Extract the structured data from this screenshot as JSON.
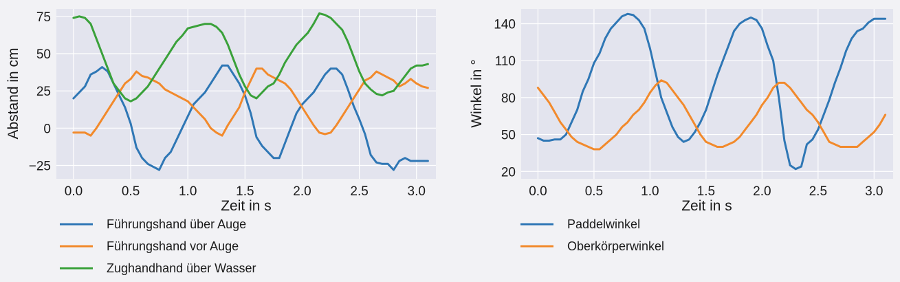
{
  "chart_data": [
    {
      "type": "line",
      "title": "",
      "xlabel": "Zeit in s",
      "ylabel": "Abstand in cm",
      "xlim": [
        -0.15,
        3.17
      ],
      "ylim": [
        -34,
        80
      ],
      "xticks": [
        0.0,
        0.5,
        1.0,
        1.5,
        2.0,
        2.5,
        3.0
      ],
      "xtick_labels": [
        "0.0",
        "0.5",
        "1.0",
        "1.5",
        "2.0",
        "2.5",
        "3.0"
      ],
      "yticks": [
        -25,
        0,
        25,
        50,
        75
      ],
      "ytick_labels": [
        "−25",
        "0",
        "25",
        "50",
        "75"
      ],
      "grid": true,
      "legend_position": "below",
      "series": [
        {
          "name": "Führungshand über Auge",
          "color": "#2f77b5",
          "x": [
            0.0,
            0.05,
            0.1,
            0.15,
            0.2,
            0.25,
            0.3,
            0.35,
            0.4,
            0.45,
            0.5,
            0.55,
            0.6,
            0.65,
            0.7,
            0.75,
            0.8,
            0.85,
            0.9,
            0.95,
            1.0,
            1.05,
            1.1,
            1.15,
            1.2,
            1.25,
            1.3,
            1.35,
            1.4,
            1.45,
            1.5,
            1.55,
            1.6,
            1.65,
            1.7,
            1.75,
            1.8,
            1.85,
            1.9,
            1.95,
            2.0,
            2.05,
            2.1,
            2.15,
            2.2,
            2.25,
            2.3,
            2.35,
            2.4,
            2.45,
            2.5,
            2.55,
            2.6,
            2.65,
            2.7,
            2.75,
            2.8,
            2.85,
            2.9,
            2.95,
            3.0,
            3.05,
            3.1
          ],
          "values": [
            20,
            24,
            28,
            36,
            38,
            41,
            38,
            30,
            22,
            14,
            3,
            -13,
            -20,
            -24,
            -26,
            -28,
            -20,
            -16,
            -8,
            0,
            8,
            16,
            20,
            24,
            30,
            36,
            42,
            42,
            36,
            30,
            22,
            10,
            -6,
            -12,
            -16,
            -20,
            -20,
            -10,
            0,
            10,
            16,
            20,
            24,
            30,
            36,
            40,
            40,
            36,
            26,
            15,
            6,
            -4,
            -18,
            -23,
            -24,
            -24,
            -28,
            -22,
            -20,
            -22,
            -22,
            -22,
            -22
          ]
        },
        {
          "name": "Führungshand vor Auge",
          "color": "#f28a2c",
          "x": [
            0.0,
            0.05,
            0.1,
            0.15,
            0.2,
            0.25,
            0.3,
            0.35,
            0.4,
            0.45,
            0.5,
            0.55,
            0.6,
            0.65,
            0.7,
            0.75,
            0.8,
            0.85,
            0.9,
            0.95,
            1.0,
            1.05,
            1.1,
            1.15,
            1.2,
            1.25,
            1.3,
            1.35,
            1.4,
            1.45,
            1.5,
            1.55,
            1.6,
            1.65,
            1.7,
            1.75,
            1.8,
            1.85,
            1.9,
            1.95,
            2.0,
            2.05,
            2.1,
            2.15,
            2.2,
            2.25,
            2.3,
            2.35,
            2.4,
            2.45,
            2.5,
            2.55,
            2.6,
            2.65,
            2.7,
            2.75,
            2.8,
            2.85,
            2.9,
            2.95,
            3.0,
            3.05,
            3.1
          ],
          "values": [
            -3,
            -3,
            -3,
            -5,
            0,
            6,
            12,
            18,
            24,
            30,
            33,
            38,
            35,
            34,
            32,
            30,
            26,
            24,
            22,
            20,
            18,
            14,
            10,
            6,
            0,
            -3,
            -5,
            2,
            8,
            14,
            24,
            32,
            40,
            40,
            36,
            34,
            32,
            30,
            26,
            20,
            14,
            8,
            2,
            -3,
            -4,
            -3,
            2,
            8,
            14,
            20,
            26,
            32,
            34,
            38,
            36,
            34,
            32,
            28,
            30,
            33,
            30,
            28,
            27
          ]
        },
        {
          "name": "Zughandhand über Wasser",
          "color": "#3aa13a",
          "x": [
            0.0,
            0.05,
            0.1,
            0.15,
            0.2,
            0.25,
            0.3,
            0.35,
            0.4,
            0.45,
            0.5,
            0.55,
            0.6,
            0.65,
            0.7,
            0.75,
            0.8,
            0.85,
            0.9,
            0.95,
            1.0,
            1.05,
            1.1,
            1.15,
            1.2,
            1.25,
            1.3,
            1.35,
            1.4,
            1.45,
            1.5,
            1.55,
            1.6,
            1.65,
            1.7,
            1.75,
            1.8,
            1.85,
            1.9,
            1.95,
            2.0,
            2.05,
            2.1,
            2.15,
            2.2,
            2.25,
            2.3,
            2.35,
            2.4,
            2.45,
            2.5,
            2.55,
            2.6,
            2.65,
            2.7,
            2.75,
            2.8,
            2.85,
            2.9,
            2.95,
            3.0,
            3.05,
            3.1
          ],
          "values": [
            74,
            75,
            74,
            70,
            60,
            50,
            40,
            30,
            25,
            20,
            18,
            20,
            24,
            28,
            34,
            40,
            46,
            52,
            58,
            62,
            67,
            68,
            69,
            70,
            70,
            68,
            64,
            56,
            46,
            36,
            28,
            22,
            20,
            24,
            28,
            30,
            36,
            44,
            50,
            56,
            60,
            64,
            70,
            77,
            76,
            74,
            70,
            66,
            58,
            48,
            38,
            30,
            26,
            23,
            22,
            24,
            25,
            30,
            35,
            40,
            42,
            42,
            43
          ]
        }
      ]
    },
    {
      "type": "line",
      "title": "",
      "xlabel": "Zeit in s",
      "ylabel": "Winkel in °",
      "xlim": [
        -0.15,
        3.17
      ],
      "ylim": [
        14,
        152
      ],
      "xticks": [
        0.0,
        0.5,
        1.0,
        1.5,
        2.0,
        2.5,
        3.0
      ],
      "xtick_labels": [
        "0.0",
        "0.5",
        "1.0",
        "1.5",
        "2.0",
        "2.5",
        "3.0"
      ],
      "yticks": [
        20,
        50,
        80,
        110,
        140
      ],
      "ytick_labels": [
        "20",
        "50",
        "80",
        "110",
        "140"
      ],
      "grid": true,
      "legend_position": "below",
      "series": [
        {
          "name": "Paddelwinkel",
          "color": "#2f77b5",
          "x": [
            0.0,
            0.05,
            0.1,
            0.15,
            0.2,
            0.25,
            0.3,
            0.35,
            0.4,
            0.45,
            0.5,
            0.55,
            0.6,
            0.65,
            0.7,
            0.75,
            0.8,
            0.85,
            0.9,
            0.95,
            1.0,
            1.05,
            1.1,
            1.15,
            1.2,
            1.25,
            1.3,
            1.35,
            1.4,
            1.45,
            1.5,
            1.55,
            1.6,
            1.65,
            1.7,
            1.75,
            1.8,
            1.85,
            1.9,
            1.95,
            2.0,
            2.05,
            2.1,
            2.15,
            2.2,
            2.25,
            2.3,
            2.35,
            2.4,
            2.45,
            2.5,
            2.55,
            2.6,
            2.65,
            2.7,
            2.75,
            2.8,
            2.85,
            2.9,
            2.95,
            3.0,
            3.05,
            3.1
          ],
          "values": [
            47,
            45,
            45,
            46,
            46,
            50,
            60,
            70,
            85,
            95,
            108,
            116,
            128,
            136,
            141,
            146,
            148,
            147,
            143,
            136,
            120,
            100,
            80,
            68,
            56,
            48,
            44,
            46,
            52,
            60,
            70,
            84,
            98,
            110,
            122,
            134,
            140,
            143,
            145,
            143,
            136,
            122,
            110,
            80,
            45,
            25,
            22,
            24,
            42,
            46,
            54,
            66,
            78,
            92,
            104,
            118,
            128,
            134,
            136,
            141,
            144,
            144,
            144
          ]
        },
        {
          "name": "Oberkörperwinkel",
          "color": "#f28a2c",
          "x": [
            0.0,
            0.05,
            0.1,
            0.15,
            0.2,
            0.25,
            0.3,
            0.35,
            0.4,
            0.45,
            0.5,
            0.55,
            0.6,
            0.65,
            0.7,
            0.75,
            0.8,
            0.85,
            0.9,
            0.95,
            1.0,
            1.05,
            1.1,
            1.15,
            1.2,
            1.25,
            1.3,
            1.35,
            1.4,
            1.45,
            1.5,
            1.55,
            1.6,
            1.65,
            1.7,
            1.75,
            1.8,
            1.85,
            1.9,
            1.95,
            2.0,
            2.05,
            2.1,
            2.15,
            2.2,
            2.25,
            2.3,
            2.35,
            2.4,
            2.45,
            2.5,
            2.55,
            2.6,
            2.65,
            2.7,
            2.75,
            2.8,
            2.85,
            2.9,
            2.95,
            3.0,
            3.05,
            3.1
          ],
          "values": [
            88,
            82,
            76,
            68,
            60,
            54,
            48,
            44,
            42,
            40,
            38,
            38,
            42,
            46,
            50,
            56,
            60,
            66,
            70,
            76,
            84,
            90,
            94,
            92,
            86,
            80,
            74,
            66,
            58,
            50,
            44,
            42,
            40,
            40,
            42,
            44,
            48,
            54,
            60,
            66,
            74,
            80,
            88,
            92,
            92,
            88,
            82,
            76,
            70,
            66,
            60,
            52,
            44,
            42,
            40,
            40,
            40,
            40,
            44,
            48,
            52,
            58,
            66
          ]
        }
      ]
    }
  ]
}
